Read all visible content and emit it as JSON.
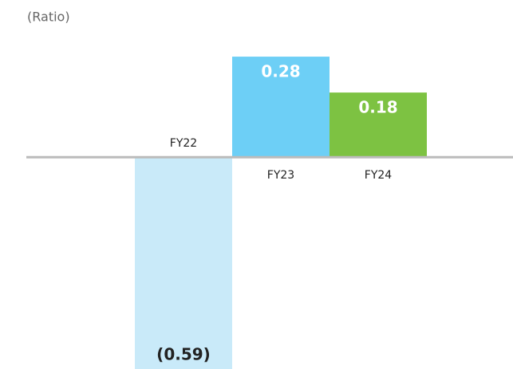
{
  "chart_data": {
    "type": "bar",
    "ylabel": "(Ratio)",
    "categories": [
      "FY22",
      "FY23",
      "FY24"
    ],
    "values": [
      -0.59,
      0.28,
      0.18
    ],
    "value_labels": [
      "(0.59)",
      "0.28",
      "0.18"
    ],
    "colors": [
      "#c9eaf9",
      "#6dcff6",
      "#7dc242"
    ],
    "ylim": [
      -0.59,
      0.42
    ]
  }
}
